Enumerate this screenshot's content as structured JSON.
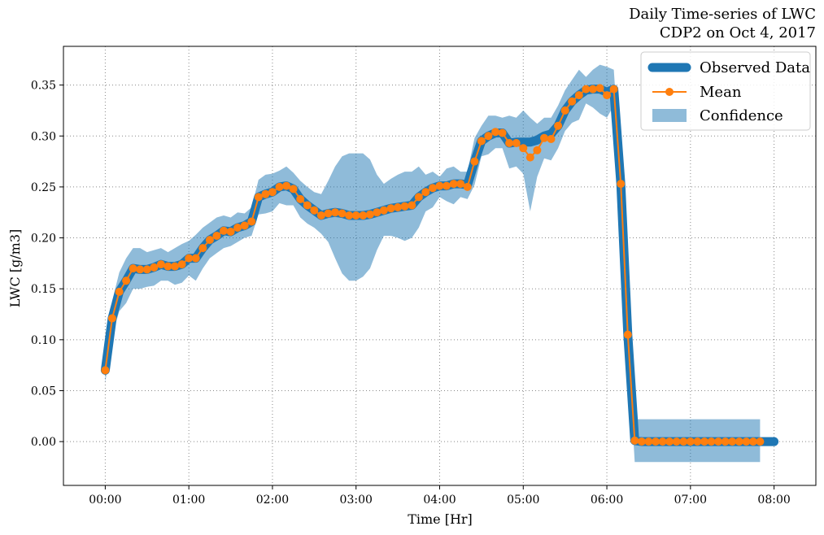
{
  "chart_data": {
    "type": "line",
    "title": "Daily Time-series of LWC",
    "subtitle": "CDP2 on Oct 4, 2017",
    "xlabel": "Time [Hr]",
    "ylabel": "LWC [g/m3]",
    "xlim": [
      -0.5,
      8.5
    ],
    "ylim": [
      -0.043,
      0.388
    ],
    "grid": true,
    "x_ticks": [
      0,
      1,
      2,
      3,
      4,
      5,
      6,
      7,
      8
    ],
    "x_tick_labels": [
      "00:00",
      "01:00",
      "02:00",
      "03:00",
      "04:00",
      "05:00",
      "06:00",
      "07:00",
      "08:00"
    ],
    "y_ticks": [
      0.0,
      0.05,
      0.1,
      0.15,
      0.2,
      0.25,
      0.3,
      0.35
    ],
    "y_tick_labels": [
      "0.00",
      "0.05",
      "0.10",
      "0.15",
      "0.20",
      "0.25",
      "0.30",
      "0.35"
    ],
    "legend_position": "top-right",
    "legend": [
      "Observed Data",
      "Mean",
      "Confidence"
    ],
    "colors": {
      "observed": "#1f77b4",
      "mean": "#ff7f0e",
      "confidence": "#1f77b4"
    },
    "series": [
      {
        "name": "Observed Data",
        "x": [
          0,
          0.083,
          0.167,
          0.25,
          0.333,
          0.417,
          0.5,
          0.583,
          0.667,
          0.75,
          0.833,
          0.917,
          1.0,
          1.083,
          1.167,
          1.25,
          1.333,
          1.417,
          1.5,
          1.583,
          1.667,
          1.75,
          1.833,
          1.917,
          2.0,
          2.083,
          2.167,
          2.25,
          2.333,
          2.417,
          2.5,
          2.583,
          2.667,
          2.75,
          2.833,
          2.917,
          3.0,
          3.083,
          3.167,
          3.25,
          3.333,
          3.417,
          3.5,
          3.583,
          3.667,
          3.75,
          3.833,
          3.917,
          4.0,
          4.083,
          4.167,
          4.25,
          4.333,
          4.417,
          4.5,
          4.583,
          4.667,
          4.75,
          4.833,
          4.917,
          5.0,
          5.083,
          5.167,
          5.25,
          5.333,
          5.417,
          5.5,
          5.583,
          5.667,
          5.75,
          5.833,
          5.917,
          6.0,
          6.083,
          6.167,
          6.25,
          6.333,
          6.417,
          6.5,
          7.0,
          7.5,
          8.0
        ],
        "values": [
          0.07,
          0.121,
          0.147,
          0.158,
          0.17,
          0.169,
          0.169,
          0.171,
          0.174,
          0.172,
          0.172,
          0.174,
          0.18,
          0.18,
          0.19,
          0.198,
          0.202,
          0.207,
          0.206,
          0.21,
          0.212,
          0.216,
          0.24,
          0.243,
          0.245,
          0.25,
          0.251,
          0.248,
          0.238,
          0.232,
          0.227,
          0.222,
          0.224,
          0.225,
          0.224,
          0.222,
          0.222,
          0.222,
          0.223,
          0.225,
          0.227,
          0.229,
          0.23,
          0.231,
          0.232,
          0.24,
          0.245,
          0.249,
          0.251,
          0.251,
          0.253,
          0.253,
          0.252,
          0.275,
          0.295,
          0.3,
          0.303,
          0.303,
          0.293,
          0.294,
          0.294,
          0.294,
          0.296,
          0.3,
          0.302,
          0.31,
          0.325,
          0.334,
          0.34,
          0.345,
          0.346,
          0.346,
          0.343,
          0.346,
          0.253,
          0.105,
          0.001,
          0.0,
          0.0,
          0.0,
          0.0,
          0.0
        ]
      },
      {
        "name": "Mean",
        "x": [
          0,
          0.083,
          0.167,
          0.25,
          0.333,
          0.417,
          0.5,
          0.583,
          0.667,
          0.75,
          0.833,
          0.917,
          1.0,
          1.083,
          1.167,
          1.25,
          1.333,
          1.417,
          1.5,
          1.583,
          1.667,
          1.75,
          1.833,
          1.917,
          2.0,
          2.083,
          2.167,
          2.25,
          2.333,
          2.417,
          2.5,
          2.583,
          2.667,
          2.75,
          2.833,
          2.917,
          3.0,
          3.083,
          3.167,
          3.25,
          3.333,
          3.417,
          3.5,
          3.583,
          3.667,
          3.75,
          3.833,
          3.917,
          4.0,
          4.083,
          4.167,
          4.25,
          4.333,
          4.417,
          4.5,
          4.583,
          4.667,
          4.75,
          4.833,
          4.917,
          5.0,
          5.083,
          5.167,
          5.25,
          5.333,
          5.417,
          5.5,
          5.583,
          5.667,
          5.75,
          5.833,
          5.917,
          6.0,
          6.083,
          6.167,
          6.25,
          6.333,
          6.417,
          6.5,
          6.583,
          6.667,
          6.75,
          6.833,
          6.917,
          7.0,
          7.083,
          7.167,
          7.25,
          7.333,
          7.417,
          7.5,
          7.583,
          7.667,
          7.75,
          7.833
        ],
        "values": [
          0.07,
          0.121,
          0.147,
          0.158,
          0.17,
          0.169,
          0.169,
          0.171,
          0.174,
          0.172,
          0.172,
          0.174,
          0.18,
          0.18,
          0.19,
          0.198,
          0.202,
          0.207,
          0.206,
          0.21,
          0.212,
          0.216,
          0.24,
          0.243,
          0.245,
          0.25,
          0.251,
          0.248,
          0.238,
          0.232,
          0.227,
          0.222,
          0.224,
          0.225,
          0.224,
          0.222,
          0.222,
          0.222,
          0.223,
          0.225,
          0.227,
          0.229,
          0.23,
          0.231,
          0.232,
          0.24,
          0.245,
          0.249,
          0.251,
          0.251,
          0.253,
          0.253,
          0.25,
          0.275,
          0.295,
          0.3,
          0.304,
          0.303,
          0.293,
          0.293,
          0.288,
          0.279,
          0.286,
          0.298,
          0.297,
          0.31,
          0.325,
          0.334,
          0.34,
          0.346,
          0.346,
          0.347,
          0.34,
          0.346,
          0.253,
          0.105,
          0.001,
          0.0,
          0.0,
          0.0,
          0.0,
          0.0,
          0.0,
          0.0,
          0.0,
          0.0,
          0.0,
          0.0,
          0.0,
          0.0,
          0.0,
          0.0,
          0.0,
          0.0,
          0.0
        ]
      },
      {
        "name": "Confidence",
        "x": [
          0,
          0.083,
          0.167,
          0.25,
          0.333,
          0.417,
          0.5,
          0.583,
          0.667,
          0.75,
          0.833,
          0.917,
          1.0,
          1.083,
          1.167,
          1.25,
          1.333,
          1.417,
          1.5,
          1.583,
          1.667,
          1.75,
          1.833,
          1.917,
          2.0,
          2.083,
          2.167,
          2.25,
          2.333,
          2.417,
          2.5,
          2.583,
          2.667,
          2.75,
          2.833,
          2.917,
          3.0,
          3.083,
          3.167,
          3.25,
          3.333,
          3.417,
          3.5,
          3.583,
          3.667,
          3.75,
          3.833,
          3.917,
          4.0,
          4.083,
          4.167,
          4.25,
          4.333,
          4.417,
          4.5,
          4.583,
          4.667,
          4.75,
          4.833,
          4.917,
          5.0,
          5.083,
          5.167,
          5.25,
          5.333,
          5.417,
          5.5,
          5.583,
          5.667,
          5.75,
          5.833,
          5.917,
          6.0,
          6.083,
          6.167,
          6.25,
          6.333,
          6.417,
          6.5,
          7.0,
          7.5,
          7.833
        ],
        "upper": [
          0.08,
          0.138,
          0.166,
          0.18,
          0.19,
          0.19,
          0.186,
          0.188,
          0.19,
          0.186,
          0.19,
          0.194,
          0.197,
          0.203,
          0.21,
          0.215,
          0.22,
          0.222,
          0.22,
          0.225,
          0.224,
          0.23,
          0.257,
          0.262,
          0.263,
          0.266,
          0.27,
          0.264,
          0.256,
          0.25,
          0.245,
          0.243,
          0.256,
          0.27,
          0.28,
          0.283,
          0.283,
          0.283,
          0.277,
          0.262,
          0.253,
          0.258,
          0.262,
          0.265,
          0.265,
          0.27,
          0.262,
          0.265,
          0.26,
          0.268,
          0.27,
          0.265,
          0.265,
          0.298,
          0.31,
          0.32,
          0.32,
          0.318,
          0.32,
          0.318,
          0.325,
          0.318,
          0.312,
          0.318,
          0.318,
          0.33,
          0.345,
          0.355,
          0.365,
          0.358,
          0.365,
          0.37,
          0.368,
          0.365,
          0.26,
          0.115,
          0.022,
          0.022,
          0.022,
          0.022,
          0.022,
          0.022
        ],
        "lower": [
          0.058,
          0.104,
          0.128,
          0.136,
          0.15,
          0.15,
          0.152,
          0.153,
          0.158,
          0.158,
          0.154,
          0.156,
          0.163,
          0.158,
          0.17,
          0.18,
          0.185,
          0.19,
          0.192,
          0.196,
          0.2,
          0.202,
          0.223,
          0.224,
          0.226,
          0.234,
          0.232,
          0.232,
          0.22,
          0.214,
          0.21,
          0.204,
          0.196,
          0.18,
          0.165,
          0.158,
          0.158,
          0.162,
          0.17,
          0.188,
          0.202,
          0.202,
          0.2,
          0.197,
          0.2,
          0.21,
          0.226,
          0.23,
          0.24,
          0.236,
          0.233,
          0.24,
          0.238,
          0.252,
          0.28,
          0.282,
          0.288,
          0.288,
          0.268,
          0.27,
          0.263,
          0.226,
          0.26,
          0.278,
          0.276,
          0.288,
          0.305,
          0.313,
          0.316,
          0.332,
          0.328,
          0.322,
          0.318,
          0.33,
          0.245,
          0.095,
          -0.02,
          -0.02,
          -0.02,
          -0.02,
          -0.02,
          -0.02
        ]
      }
    ]
  }
}
